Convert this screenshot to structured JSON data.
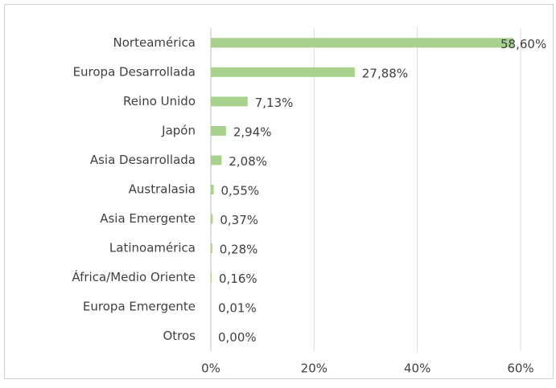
{
  "chart_data": {
    "type": "bar",
    "orientation": "horizontal",
    "categories": [
      "Norteamérica",
      "Europa Desarrollada",
      "Reino Unido",
      "Japón",
      "Asia Desarrollada",
      "Australasia",
      "Asia Emergente",
      "Latinoamérica",
      "África/Medio Oriente",
      "Europa Emergente",
      "Otros"
    ],
    "values": [
      58.6,
      27.88,
      7.13,
      2.94,
      2.08,
      0.55,
      0.37,
      0.28,
      0.16,
      0.01,
      0.0
    ],
    "value_labels": [
      "58,60%",
      "27,88%",
      "7,13%",
      "2,94%",
      "2,08%",
      "0,55%",
      "0,37%",
      "0,28%",
      "0,16%",
      "0,01%",
      "0,00%"
    ],
    "color": "#a9d18e",
    "xlim": [
      0,
      60
    ],
    "xticks": [
      {
        "value": 0,
        "label": "0%"
      },
      {
        "value": 20,
        "label": "20%"
      },
      {
        "value": 40,
        "label": "40%"
      },
      {
        "value": 60,
        "label": "60%"
      }
    ],
    "grid": true
  }
}
